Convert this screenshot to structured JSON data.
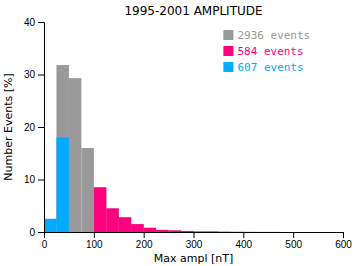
{
  "chart_data": {
    "type": "histogram",
    "title": "1995-2001 AMPLITUDE",
    "xlabel": "Max ampl [nT]",
    "ylabel": "Number Events [%]",
    "xlim": [
      0,
      600
    ],
    "ylim": [
      0,
      40
    ],
    "xticks": [
      0,
      100,
      200,
      300,
      400,
      500,
      600
    ],
    "yticks": [
      0,
      10,
      20,
      30,
      40
    ],
    "bins": [
      0,
      25,
      50,
      75,
      100,
      125,
      150,
      175,
      200,
      225,
      250,
      275,
      300,
      325,
      350,
      375,
      400,
      425,
      450,
      475,
      500,
      525,
      550,
      575,
      600
    ],
    "stacked": false,
    "grid": false,
    "legend": "upper right",
    "series": [
      {
        "name": "2936 events",
        "color": "#999999",
        "values": [
          2.5,
          31.8,
          29.3,
          16.0,
          8.5,
          4.5,
          2.8,
          1.5,
          0.8,
          0.4,
          0.3,
          0.2,
          0.1,
          0.1,
          0.05,
          0.03,
          0.02,
          0.01,
          0.01,
          0.0,
          0.0,
          0.0,
          0.0,
          0.0
        ]
      },
      {
        "name": "584 events",
        "color": "#FF007F",
        "values": [
          0.0,
          0.0,
          0.0,
          0.0,
          8.5,
          4.5,
          2.8,
          1.5,
          0.8,
          0.4,
          0.3,
          0.2,
          0.1,
          0.1,
          0.05,
          0.03,
          0.02,
          0.01,
          0.01,
          0.0,
          0.0,
          0.0,
          0.0,
          0.0
        ]
      },
      {
        "name": "607 events",
        "color": "#00AAFF",
        "values": [
          2.5,
          18.0,
          0.0,
          0.0,
          0.0,
          0.0,
          0.0,
          0.0,
          0.0,
          0.0,
          0.0,
          0.0,
          0.0,
          0.0,
          0.0,
          0.0,
          0.0,
          0.0,
          0.0,
          0.0,
          0.0,
          0.0,
          0.0,
          0.0
        ]
      }
    ]
  }
}
